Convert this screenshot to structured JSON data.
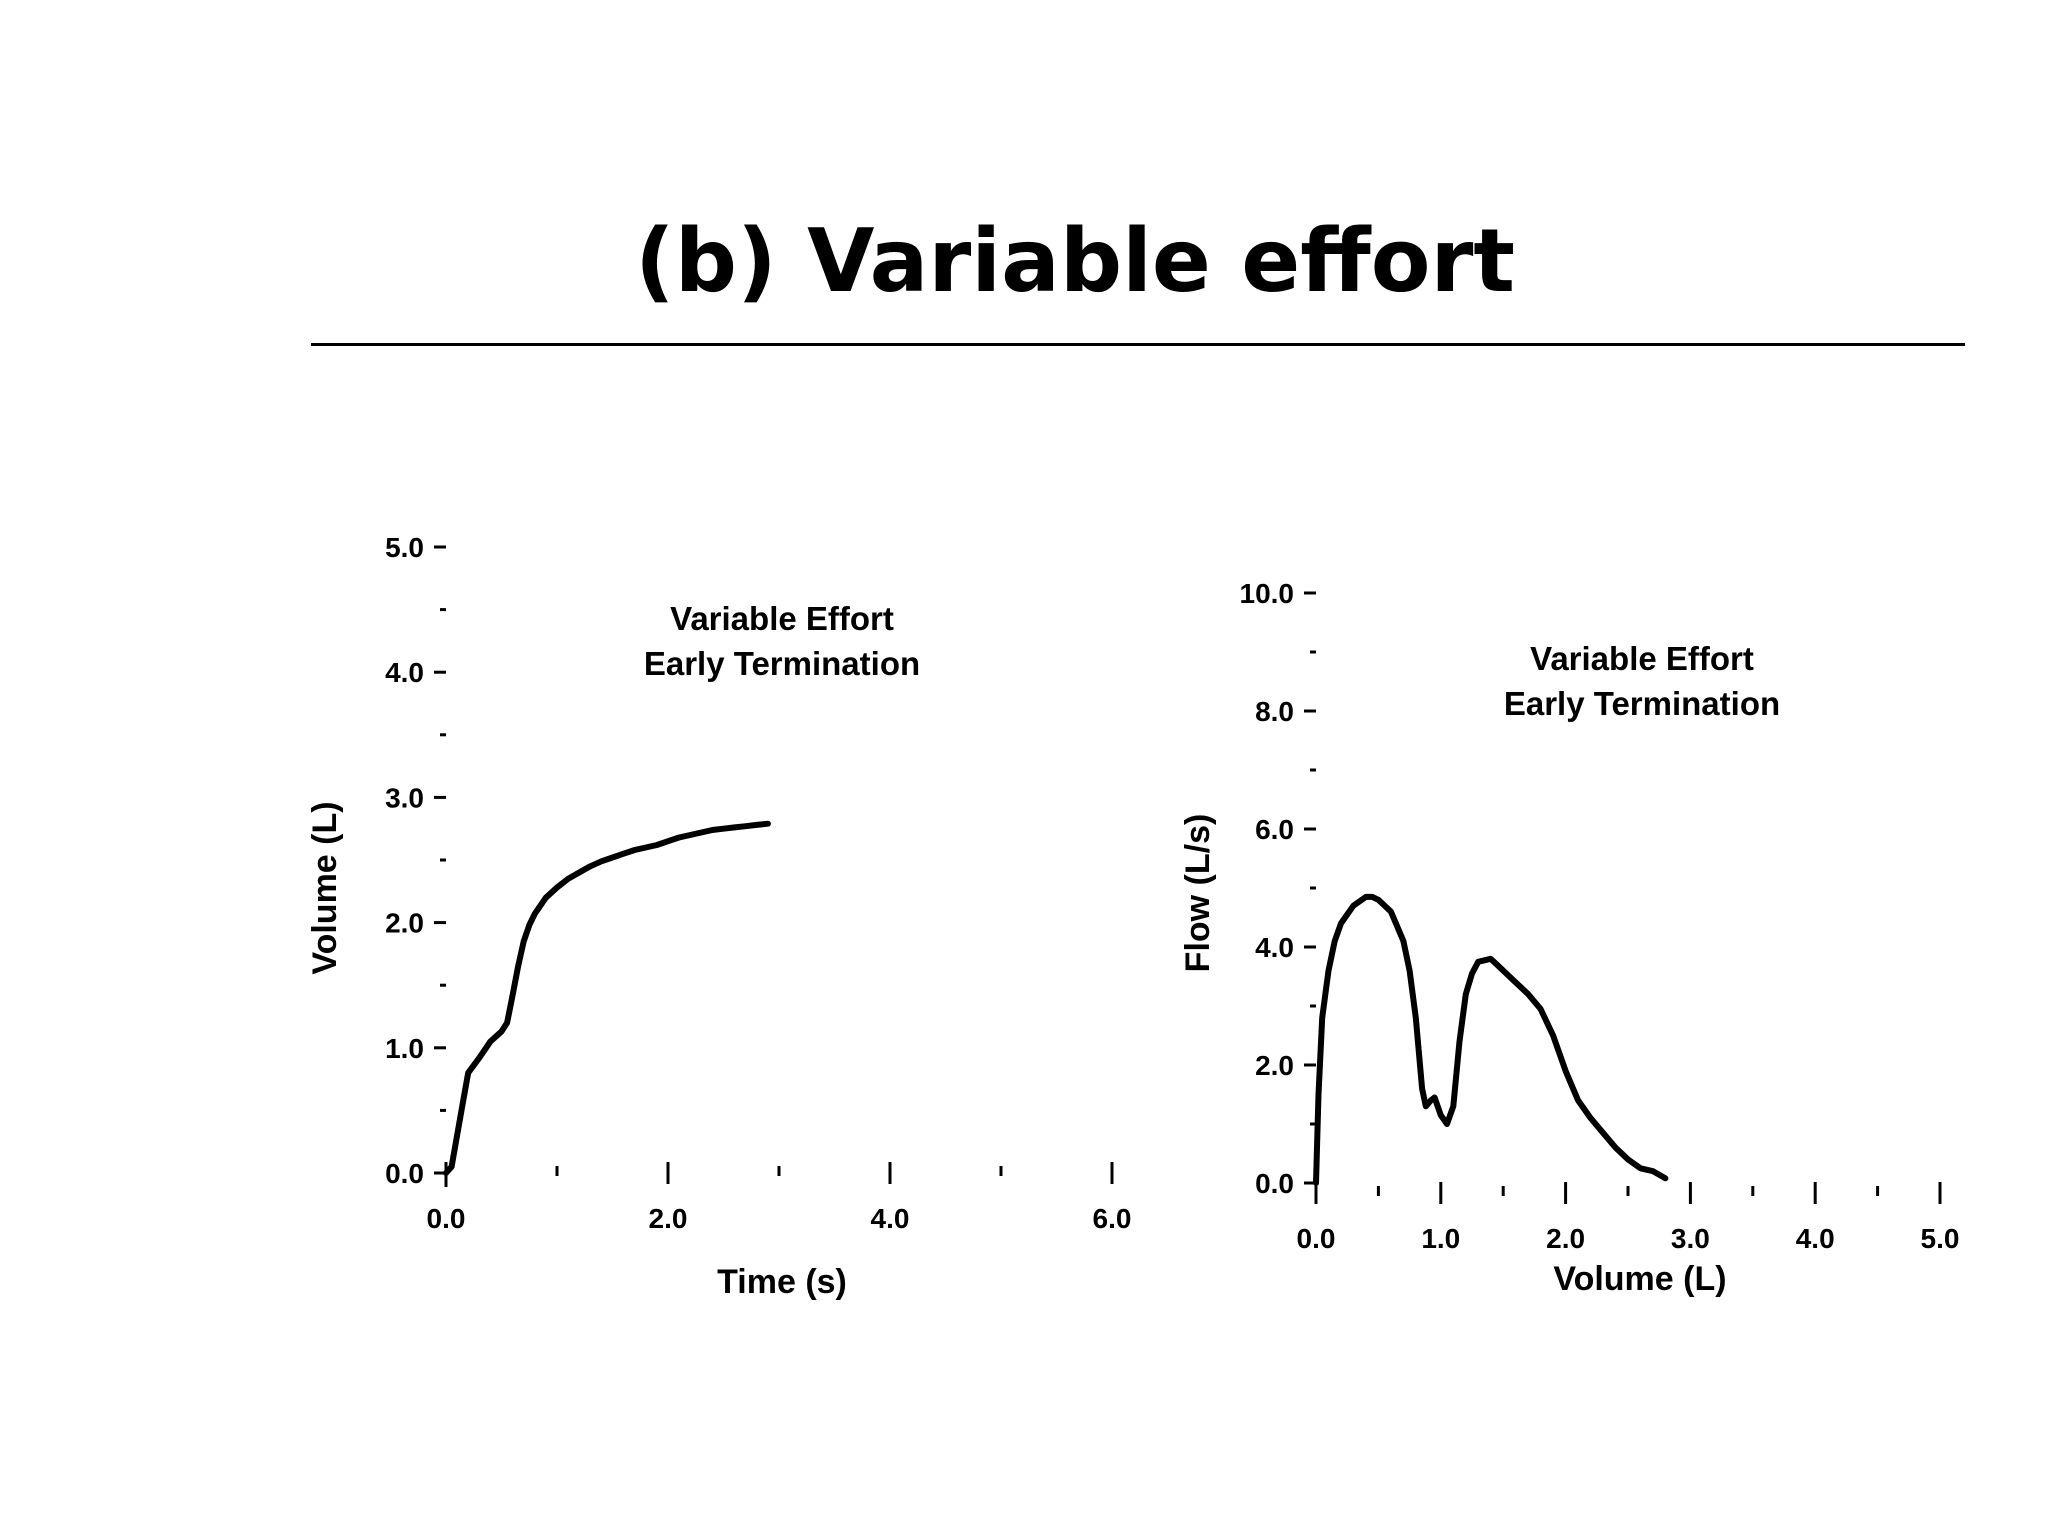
{
  "slide": {
    "title": "(b) Variable effort"
  },
  "chart_data": [
    {
      "type": "line",
      "xlabel": "Time (s)",
      "ylabel": "Volume (L)",
      "xlim": [
        0,
        6
      ],
      "ylim": [
        0,
        5
      ],
      "x_tick_labels": [
        "0.0",
        "2.0",
        "4.0",
        "6.0"
      ],
      "x_minor_ticks": [
        1,
        3,
        5
      ],
      "y_tick_labels": [
        "0.0",
        "1.0",
        "2.0",
        "3.0",
        "4.0",
        "5.0"
      ],
      "y_minor_ticks": [
        0.5,
        1.5,
        2.5,
        3.5,
        4.5
      ],
      "annotation": [
        "Variable Effort",
        "Early Termination"
      ],
      "grid": false,
      "series": [
        {
          "color": "#000000",
          "x": [
            0.0,
            0.05,
            0.1,
            0.15,
            0.2,
            0.3,
            0.4,
            0.5,
            0.55,
            0.6,
            0.65,
            0.7,
            0.75,
            0.8,
            0.9,
            1.0,
            1.1,
            1.2,
            1.3,
            1.4,
            1.5,
            1.6,
            1.7,
            1.8,
            1.9,
            2.0,
            2.1,
            2.2,
            2.3,
            2.4,
            2.5,
            2.6,
            2.7,
            2.8,
            2.9
          ],
          "y": [
            0.0,
            0.05,
            0.3,
            0.55,
            0.8,
            0.92,
            1.05,
            1.13,
            1.2,
            1.42,
            1.65,
            1.85,
            1.98,
            2.07,
            2.2,
            2.28,
            2.35,
            2.4,
            2.45,
            2.49,
            2.52,
            2.55,
            2.58,
            2.6,
            2.62,
            2.65,
            2.68,
            2.7,
            2.72,
            2.74,
            2.75,
            2.76,
            2.77,
            2.78,
            2.79
          ]
        }
      ]
    },
    {
      "type": "line",
      "xlabel": "Volume (L)",
      "ylabel": "Flow (L/s)",
      "xlim": [
        0,
        5
      ],
      "ylim": [
        0,
        10
      ],
      "x_tick_labels": [
        "0.0",
        "1.0",
        "2.0",
        "3.0",
        "4.0",
        "5.0"
      ],
      "x_minor_ticks": [
        0.5,
        1.5,
        2.5,
        3.5,
        4.5
      ],
      "y_tick_labels": [
        "0.0",
        "2.0",
        "4.0",
        "6.0",
        "8.0",
        "10.0"
      ],
      "y_minor_ticks": [
        1,
        3,
        5,
        7,
        9
      ],
      "annotation": [
        "Variable Effort",
        "Early Termination"
      ],
      "grid": false,
      "series": [
        {
          "color": "#000000",
          "x": [
            0.0,
            0.02,
            0.05,
            0.1,
            0.15,
            0.2,
            0.3,
            0.4,
            0.45,
            0.5,
            0.6,
            0.7,
            0.75,
            0.8,
            0.85,
            0.88,
            0.92,
            0.95,
            1.0,
            1.05,
            1.1,
            1.15,
            1.2,
            1.25,
            1.3,
            1.4,
            1.45,
            1.5,
            1.6,
            1.7,
            1.8,
            1.9,
            2.0,
            2.1,
            2.2,
            2.3,
            2.4,
            2.5,
            2.6,
            2.7,
            2.8
          ],
          "y": [
            0.0,
            1.5,
            2.8,
            3.6,
            4.1,
            4.4,
            4.7,
            4.85,
            4.85,
            4.8,
            4.6,
            4.1,
            3.6,
            2.8,
            1.6,
            1.3,
            1.4,
            1.45,
            1.15,
            1.0,
            1.3,
            2.4,
            3.2,
            3.55,
            3.75,
            3.8,
            3.7,
            3.6,
            3.4,
            3.2,
            2.95,
            2.5,
            1.9,
            1.4,
            1.1,
            0.85,
            0.6,
            0.4,
            0.25,
            0.2,
            0.08
          ]
        }
      ]
    }
  ]
}
